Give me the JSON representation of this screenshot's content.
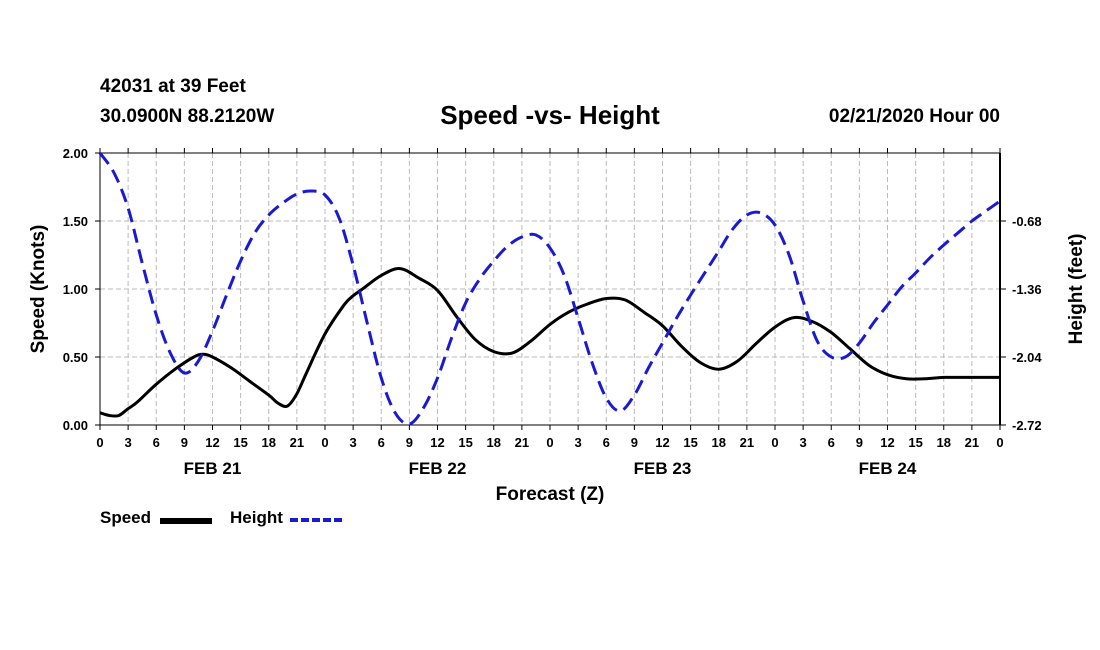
{
  "header": {
    "station": "42031 at 39 Feet",
    "location": "30.0900N 88.2120W",
    "title": "Speed -vs- Height",
    "date": "02/21/2020 Hour 00"
  },
  "legend": {
    "speed_label": "Speed",
    "height_label": "Height"
  },
  "colors": {
    "speed": "#000000",
    "height": "#1a1ad0",
    "grid": "#bbbbbb"
  },
  "chart_data": {
    "type": "line",
    "title": "Speed -vs- Height",
    "xlabel": "Forecast (Z)",
    "ylabel": "Speed (Knots)",
    "y2label": "Height (feet)",
    "x_tick_labels": [
      "0",
      "3",
      "6",
      "9",
      "12",
      "15",
      "18",
      "21",
      "0",
      "3",
      "6",
      "9",
      "12",
      "15",
      "18",
      "21",
      "0",
      "3",
      "6",
      "9",
      "12",
      "15",
      "18",
      "21",
      "0",
      "3",
      "6",
      "9",
      "12",
      "15",
      "18",
      "21",
      "0"
    ],
    "date_labels": [
      {
        "label": "FEB 21",
        "hour": 12
      },
      {
        "label": "FEB 22",
        "hour": 36
      },
      {
        "label": "FEB 23",
        "hour": 60
      },
      {
        "label": "FEB 24",
        "hour": 84
      }
    ],
    "xlim": [
      0,
      96
    ],
    "ylim": [
      0,
      2.0
    ],
    "y_ticks": [
      "0.00",
      "0.50",
      "1.00",
      "1.50",
      "2.00"
    ],
    "y2lim": [
      -2.72,
      0.0
    ],
    "y2_ticks": [
      "-0.68",
      "-1.36",
      "-2.04",
      "-2.72"
    ],
    "grid": true,
    "legend_position": "bottom-left",
    "series": [
      {
        "name": "Speed",
        "axis": "left",
        "style": "solid",
        "x": [
          0,
          1,
          2,
          3,
          4,
          6,
          8,
          10,
          11,
          12,
          14,
          16,
          18,
          19,
          20,
          21,
          22,
          24,
          26,
          27,
          28,
          30,
          32,
          34,
          36,
          38,
          40,
          42,
          44,
          46,
          48,
          50,
          52,
          54,
          56,
          58,
          60,
          62,
          64,
          66,
          68,
          70,
          72,
          74,
          76,
          78,
          80,
          82,
          84,
          86,
          88,
          90,
          92,
          94,
          96
        ],
        "y": [
          0.09,
          0.07,
          0.07,
          0.12,
          0.17,
          0.3,
          0.41,
          0.5,
          0.52,
          0.5,
          0.42,
          0.32,
          0.22,
          0.16,
          0.14,
          0.23,
          0.38,
          0.67,
          0.88,
          0.95,
          1.0,
          1.1,
          1.15,
          1.08,
          0.99,
          0.8,
          0.63,
          0.54,
          0.53,
          0.62,
          0.74,
          0.83,
          0.89,
          0.93,
          0.92,
          0.83,
          0.73,
          0.58,
          0.46,
          0.41,
          0.47,
          0.6,
          0.72,
          0.79,
          0.76,
          0.68,
          0.56,
          0.44,
          0.37,
          0.34,
          0.34,
          0.35,
          0.35,
          0.35,
          0.35
        ]
      },
      {
        "name": "Height",
        "axis": "right",
        "style": "dashed",
        "x": [
          0,
          1.5,
          3,
          4.5,
          6,
          7.5,
          9,
          10.5,
          12,
          13.5,
          15,
          16.5,
          18,
          19.5,
          21,
          22.5,
          24,
          25.5,
          27,
          28.5,
          30,
          31.5,
          33,
          34.5,
          36,
          37.5,
          39,
          40.5,
          42,
          43.5,
          45,
          46.5,
          48,
          49.5,
          51,
          52.5,
          54,
          55.5,
          57,
          58.5,
          60,
          61.5,
          63,
          64.5,
          66,
          67.5,
          69,
          70.5,
          72,
          73.5,
          75,
          76.5,
          78,
          79.5,
          81,
          82.5,
          84,
          85.5,
          87,
          88.5,
          90,
          91.5,
          93,
          94.5,
          96
        ],
        "y": [
          0.0,
          -0.2,
          -0.55,
          -1.1,
          -1.62,
          -2.0,
          -2.2,
          -2.08,
          -1.78,
          -1.42,
          -1.08,
          -0.8,
          -0.62,
          -0.5,
          -0.41,
          -0.38,
          -0.42,
          -0.65,
          -1.12,
          -1.7,
          -2.25,
          -2.6,
          -2.71,
          -2.55,
          -2.25,
          -1.85,
          -1.5,
          -1.26,
          -1.08,
          -0.93,
          -0.84,
          -0.82,
          -0.95,
          -1.22,
          -1.65,
          -2.1,
          -2.45,
          -2.58,
          -2.42,
          -2.15,
          -1.9,
          -1.65,
          -1.42,
          -1.2,
          -0.98,
          -0.76,
          -0.62,
          -0.6,
          -0.72,
          -1.02,
          -1.48,
          -1.88,
          -2.04,
          -2.04,
          -1.9,
          -1.7,
          -1.52,
          -1.34,
          -1.2,
          -1.05,
          -0.92,
          -0.8,
          -0.68,
          -0.58,
          -0.48
        ]
      }
    ]
  }
}
